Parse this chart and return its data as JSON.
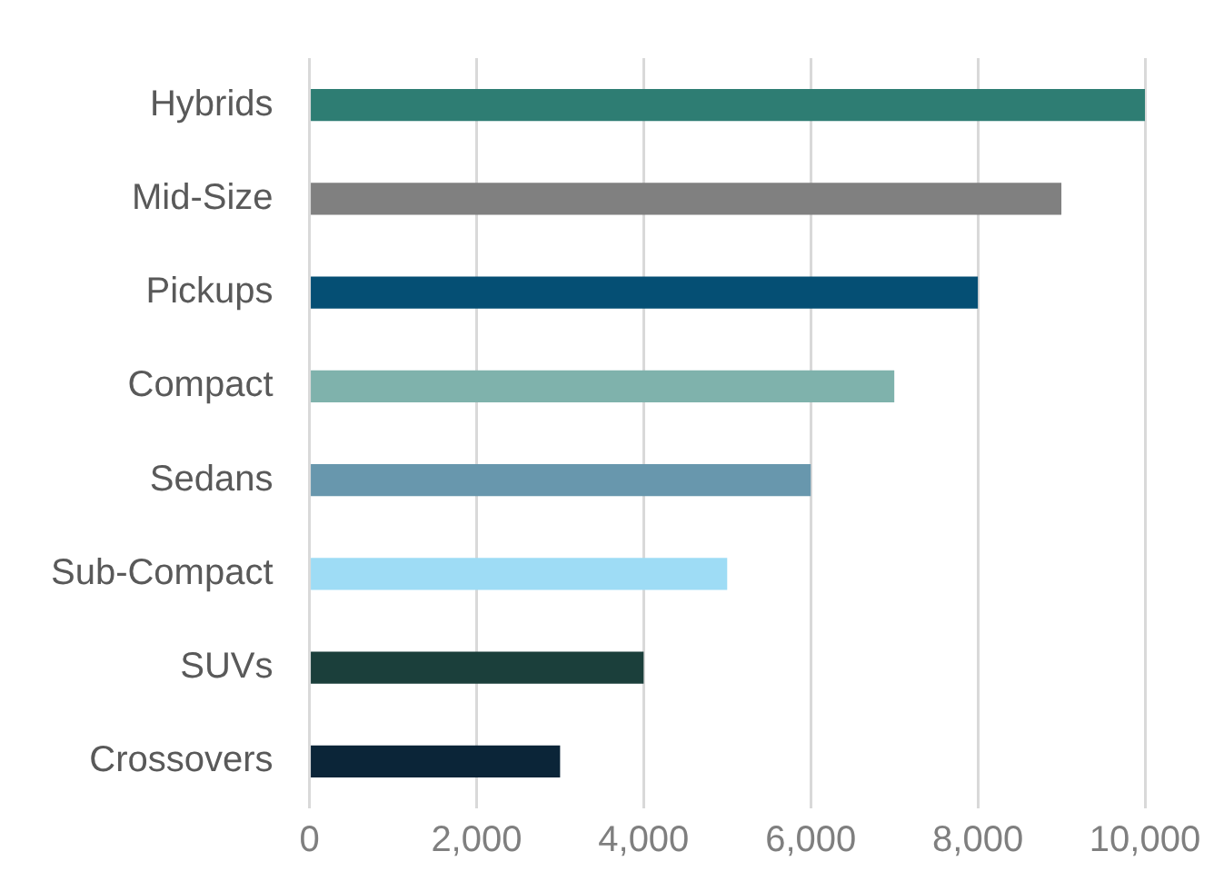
{
  "chart_data": {
    "type": "bar",
    "orientation": "horizontal",
    "categories": [
      "Hybrids",
      "Mid-Size",
      "Pickups",
      "Compact",
      "Sedans",
      "Sub-Compact",
      "SUVs",
      "Crossovers"
    ],
    "values": [
      10000,
      9000,
      8000,
      7000,
      6000,
      5000,
      4000,
      3000
    ],
    "colors": [
      "#2e7d73",
      "#808080",
      "#054f74",
      "#7fb2ac",
      "#6897ad",
      "#9edcf5",
      "#1b3f3b",
      "#0b2538"
    ],
    "xlim": [
      0,
      10000
    ],
    "xticks": [
      0,
      {
        "value": 2000,
        "label": "2,000"
      },
      {
        "value": 4000,
        "label": "4,000"
      },
      {
        "value": 6000,
        "label": "6,000"
      },
      {
        "value": 8000,
        "label": "8,000"
      },
      {
        "value": 10000,
        "label": "10,000"
      }
    ],
    "grid": "x",
    "legend": false
  }
}
